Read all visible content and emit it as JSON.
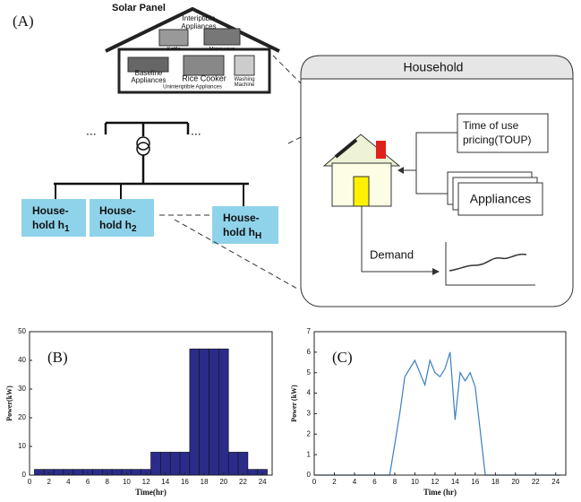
{
  "diagram": {
    "panel_label": "(A)",
    "home": {
      "solar_panel": "Solar Panel",
      "interruptible": [
        "Interiptible",
        "Appliances"
      ],
      "kettle": "Kettle",
      "microwave": "Microwave",
      "baseline": [
        "Baseline",
        "Appliances"
      ],
      "rice_cooker": "Rice Cooker",
      "washing": [
        "Washing",
        "Machine"
      ],
      "uninterruptible": "Uninteriptible Appliances"
    },
    "grid_dots_left": "...",
    "grid_dots_right": "...",
    "households": [
      {
        "line1": "House-",
        "line2": "hold h",
        "sub": "1"
      },
      {
        "line1": "House-",
        "line2": "hold h",
        "sub": "2"
      },
      {
        "line1": "House-",
        "line2": "hold h",
        "sub": "H"
      }
    ],
    "household_panel": {
      "title": "Household",
      "toup": [
        "Time of use",
        "pricing(TOUP)"
      ],
      "appliances": "Appliances",
      "demand": "Demand"
    }
  },
  "chart_data": [
    {
      "type": "bar",
      "label": "(B)",
      "x_label": "Time(hr)",
      "y_label": "Power(kW)",
      "color": "#2b2b8a",
      "x": [
        1,
        2,
        3,
        4,
        5,
        6,
        7,
        8,
        9,
        10,
        11,
        12,
        13,
        14,
        15,
        16,
        17,
        18,
        19,
        20,
        21,
        22,
        23,
        24
      ],
      "values": [
        2,
        2,
        2,
        2,
        2,
        2,
        2,
        2,
        2,
        2,
        2,
        2,
        8,
        8,
        8,
        8,
        44,
        44,
        44,
        44,
        8,
        8,
        2,
        2
      ],
      "xlim": [
        0,
        25
      ],
      "xticks": [
        0,
        2,
        4,
        6,
        8,
        10,
        12,
        14,
        16,
        18,
        20,
        22,
        24
      ],
      "ylim": [
        0,
        50
      ],
      "yticks": [
        0,
        10,
        20,
        30,
        40,
        50
      ]
    },
    {
      "type": "line",
      "label": "(C)",
      "x_label": "Time (hr)",
      "y_label": "Power (kW)",
      "color": "#3a7fc0",
      "x": [
        0,
        7.5,
        8.5,
        9,
        10,
        11,
        11.5,
        12,
        12.5,
        13,
        13.5,
        14,
        14.5,
        15,
        15.5,
        16,
        17,
        24.5
      ],
      "values": [
        0,
        0,
        3,
        4.8,
        5.6,
        4.4,
        5.6,
        5.0,
        4.8,
        5.2,
        6.0,
        2.7,
        5.0,
        4.6,
        5.0,
        4.3,
        0,
        0
      ],
      "xlim": [
        0,
        25
      ],
      "xticks": [
        0,
        2,
        4,
        6,
        8,
        10,
        12,
        14,
        16,
        18,
        20,
        22,
        24
      ],
      "ylim": [
        0,
        7
      ],
      "yticks": [
        0,
        1,
        2,
        3,
        4,
        5,
        6,
        7
      ]
    }
  ]
}
